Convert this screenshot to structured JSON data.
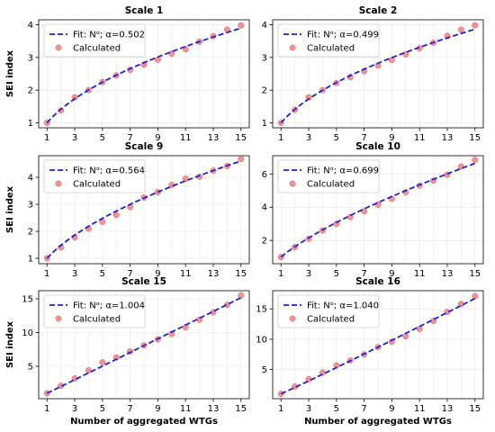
{
  "chart_data": [
    {
      "type": "scatter",
      "title": "Scale 1",
      "ylabel": "SEI index",
      "xlabel": "",
      "xlim": [
        0.4,
        15.6
      ],
      "ylim": [
        0.85,
        4.15
      ],
      "xticks": [
        1,
        3,
        5,
        7,
        9,
        11,
        13,
        15
      ],
      "yticks": [
        1,
        2,
        3,
        4
      ],
      "grid": true,
      "legend": "top-left",
      "alpha": 0.502,
      "fit_label": "Fit: Nᵅ; α=0.502",
      "x": [
        1,
        2,
        3,
        4,
        5,
        6,
        7,
        8,
        9,
        10,
        11,
        12,
        13,
        14,
        15
      ],
      "series": [
        {
          "name": "Calculated",
          "values": [
            1.0,
            1.38,
            1.78,
            2.0,
            2.25,
            2.45,
            2.62,
            2.78,
            2.93,
            3.12,
            3.25,
            3.48,
            3.65,
            3.85,
            3.98
          ]
        }
      ]
    },
    {
      "type": "scatter",
      "title": "Scale 2",
      "ylabel": "",
      "xlabel": "",
      "xlim": [
        0.4,
        15.6
      ],
      "ylim": [
        0.85,
        4.15
      ],
      "xticks": [
        1,
        3,
        5,
        7,
        9,
        11,
        13,
        15
      ],
      "yticks": [
        1,
        2,
        3,
        4
      ],
      "grid": true,
      "legend": "top-left",
      "alpha": 0.499,
      "fit_label": "Fit: Nᵅ; α=0.499",
      "x": [
        1,
        2,
        3,
        4,
        5,
        6,
        7,
        8,
        9,
        10,
        11,
        12,
        13,
        14,
        15
      ],
      "series": [
        {
          "name": "Calculated",
          "values": [
            1.0,
            1.4,
            1.78,
            2.0,
            2.22,
            2.4,
            2.58,
            2.75,
            2.92,
            3.1,
            3.28,
            3.45,
            3.66,
            3.85,
            3.98
          ]
        }
      ]
    },
    {
      "type": "scatter",
      "title": "Scale 9",
      "ylabel": "SEI index",
      "xlabel": "",
      "xlim": [
        0.4,
        15.6
      ],
      "ylim": [
        0.8,
        4.8
      ],
      "xticks": [
        1,
        3,
        5,
        7,
        9,
        11,
        13,
        15
      ],
      "yticks": [
        1,
        2,
        3,
        4
      ],
      "grid": true,
      "legend": "top-left",
      "alpha": 0.564,
      "fit_label": "Fit: Nᵅ; α=0.564",
      "x": [
        1,
        2,
        3,
        4,
        5,
        6,
        7,
        8,
        9,
        10,
        11,
        12,
        13,
        14,
        15
      ],
      "series": [
        {
          "name": "Calculated",
          "values": [
            1.0,
            1.4,
            1.78,
            2.1,
            2.35,
            2.6,
            2.9,
            3.25,
            3.45,
            3.72,
            3.95,
            4.02,
            4.25,
            4.42,
            4.68
          ]
        }
      ]
    },
    {
      "type": "scatter",
      "title": "Scale 10",
      "ylabel": "",
      "xlabel": "",
      "xlim": [
        0.4,
        15.6
      ],
      "ylim": [
        0.6,
        7.1
      ],
      "xticks": [
        1,
        3,
        5,
        7,
        9,
        11,
        13,
        15
      ],
      "yticks": [
        2,
        4,
        6
      ],
      "grid": true,
      "legend": "top-left",
      "alpha": 0.699,
      "fit_label": "Fit: Nᵅ; α=0.699",
      "x": [
        1,
        2,
        3,
        4,
        5,
        6,
        7,
        8,
        9,
        10,
        11,
        12,
        13,
        14,
        15
      ],
      "series": [
        {
          "name": "Calculated",
          "values": [
            1.0,
            1.6,
            2.1,
            2.6,
            3.0,
            3.4,
            3.75,
            4.15,
            4.5,
            4.9,
            5.3,
            5.6,
            5.95,
            6.45,
            6.85
          ]
        }
      ]
    },
    {
      "type": "scatter",
      "title": "Scale 15",
      "ylabel": "SEI index",
      "xlabel": "Number of aggregated WTGs",
      "xlim": [
        0.4,
        15.6
      ],
      "ylim": [
        0.2,
        16.2
      ],
      "xticks": [
        1,
        3,
        5,
        7,
        9,
        11,
        13,
        15
      ],
      "yticks": [
        5,
        10,
        15
      ],
      "grid": true,
      "legend": "top-left",
      "alpha": 1.004,
      "fit_label": "Fit: Nᵅ; α=1.004",
      "x": [
        1,
        2,
        3,
        4,
        5,
        6,
        7,
        8,
        9,
        10,
        11,
        12,
        13,
        14,
        15
      ],
      "series": [
        {
          "name": "Calculated",
          "values": [
            1.0,
            2.1,
            3.2,
            4.4,
            5.6,
            6.3,
            7.2,
            8.1,
            9.0,
            9.8,
            10.8,
            11.9,
            13.0,
            14.1,
            15.5
          ]
        }
      ]
    },
    {
      "type": "scatter",
      "title": "Scale 16",
      "ylabel": "",
      "xlabel": "Number of aggregated WTGs",
      "xlim": [
        0.4,
        15.6
      ],
      "ylim": [
        0.2,
        18.0
      ],
      "xticks": [
        1,
        3,
        5,
        7,
        9,
        11,
        13,
        15
      ],
      "yticks": [
        5,
        10,
        15
      ],
      "grid": true,
      "legend": "top-left",
      "alpha": 1.04,
      "fit_label": "Fit: Nᵅ; α=1.040",
      "x": [
        1,
        2,
        3,
        4,
        5,
        6,
        7,
        8,
        9,
        10,
        11,
        12,
        13,
        14,
        15
      ],
      "series": [
        {
          "name": "Calculated",
          "values": [
            1.0,
            2.2,
            3.4,
            4.5,
            5.7,
            6.5,
            7.5,
            8.7,
            9.6,
            10.5,
            11.7,
            13.0,
            14.5,
            15.8,
            17.1
          ]
        }
      ]
    }
  ],
  "colors": {
    "fit_line": "#1f1fe0",
    "points": "#f08080",
    "points_edge": "#e06060"
  }
}
